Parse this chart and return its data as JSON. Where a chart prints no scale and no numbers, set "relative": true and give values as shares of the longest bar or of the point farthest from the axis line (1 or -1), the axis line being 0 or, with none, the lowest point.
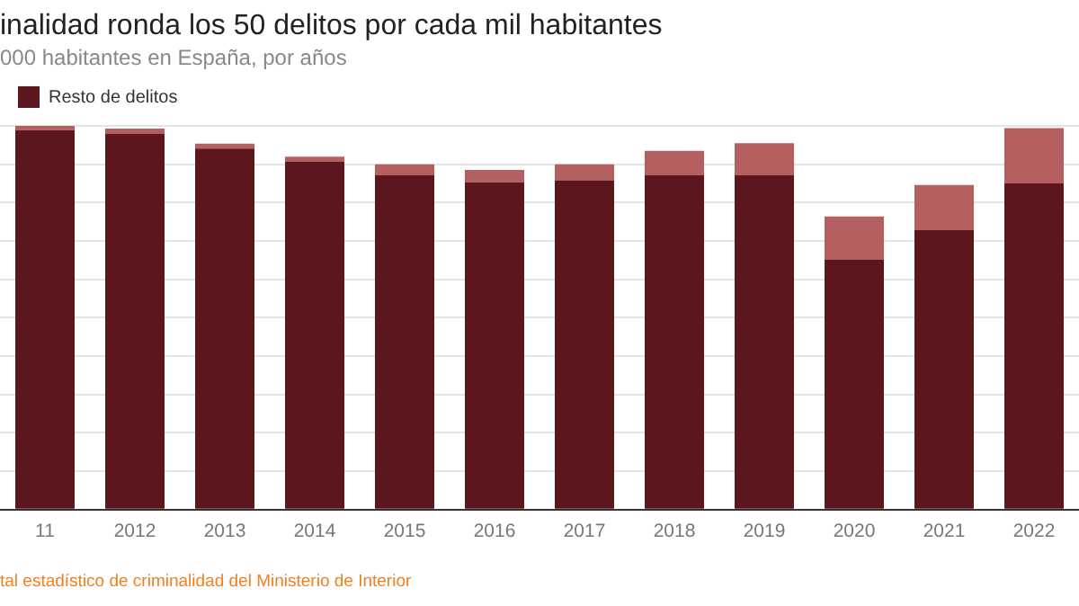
{
  "chart_data": {
    "type": "bar",
    "title": "inalidad ronda los 50 delitos por cada mil habitantes",
    "subtitle": "000 habitantes en España, por años",
    "annotations": [
      "tal estadístico de criminalidad del Ministerio de Interior"
    ],
    "categories": [
      "11",
      "2012",
      "2013",
      "2014",
      "2015",
      "2016",
      "2017",
      "2018",
      "2019",
      "2020",
      "2021",
      "2022"
    ],
    "stacked": true,
    "relative": true,
    "grid": "y",
    "legend": "top left",
    "series": [
      {
        "name": "Resto de delitos",
        "color": "#5e161e",
        "values": [
          0.989,
          0.979,
          0.941,
          0.906,
          0.871,
          0.853,
          0.858,
          0.871,
          0.871,
          0.652,
          0.728,
          0.85
        ]
      },
      {
        "color": "#b56060",
        "values": [
          0.011,
          0.014,
          0.013,
          0.014,
          0.029,
          0.032,
          0.042,
          0.064,
          0.084,
          0.112,
          0.118,
          0.144
        ]
      }
    ]
  }
}
